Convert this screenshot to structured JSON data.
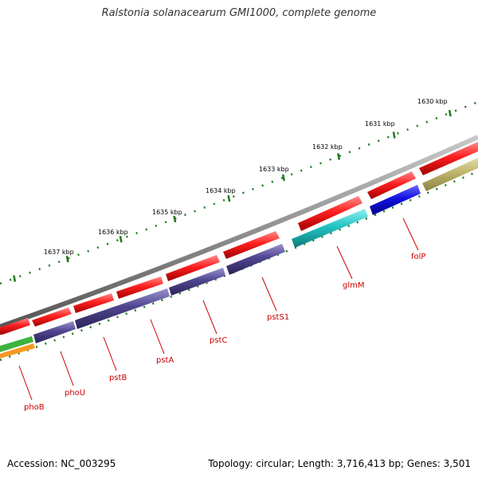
{
  "title": "Ralstonia solanacearum GMI1000, complete genome",
  "footer": {
    "accession": "Accession: NC_003295",
    "summary": "Topology: circular; Length: 3,716,413 bp; Genes: 3,501"
  },
  "colors": {
    "backbone": "#8f8f8f",
    "tick": "#1f7a1f",
    "label": "#cc0000",
    "forward_gene": "#ff1f1f",
    "reverse_gene": "#4f458f",
    "glmM": "#22c4c4",
    "folP": "#1010e0",
    "phoB_green": "#3db33d",
    "phoB_orange": "#f59a23",
    "far_track": "#bdb46a"
  },
  "tick_labels": [
    "1630 kbp",
    "1631 kbp",
    "1632 kbp",
    "1633 kbp",
    "1634 kbp",
    "1635 kbp",
    "1636 kbp",
    "1637 kbp"
  ],
  "genes": [
    {
      "name": "phoB",
      "color_key": "phoB_green"
    },
    {
      "name": "phoU",
      "color_key": "reverse_gene"
    },
    {
      "name": "pstB",
      "color_key": "reverse_gene"
    },
    {
      "name": "pstA",
      "color_key": "reverse_gene"
    },
    {
      "name": "pstC",
      "color_key": "reverse_gene"
    },
    {
      "name": "pstS1",
      "color_key": "reverse_gene"
    },
    {
      "name": "glmM",
      "color_key": "glmM"
    },
    {
      "name": "folP",
      "color_key": "folP"
    }
  ]
}
